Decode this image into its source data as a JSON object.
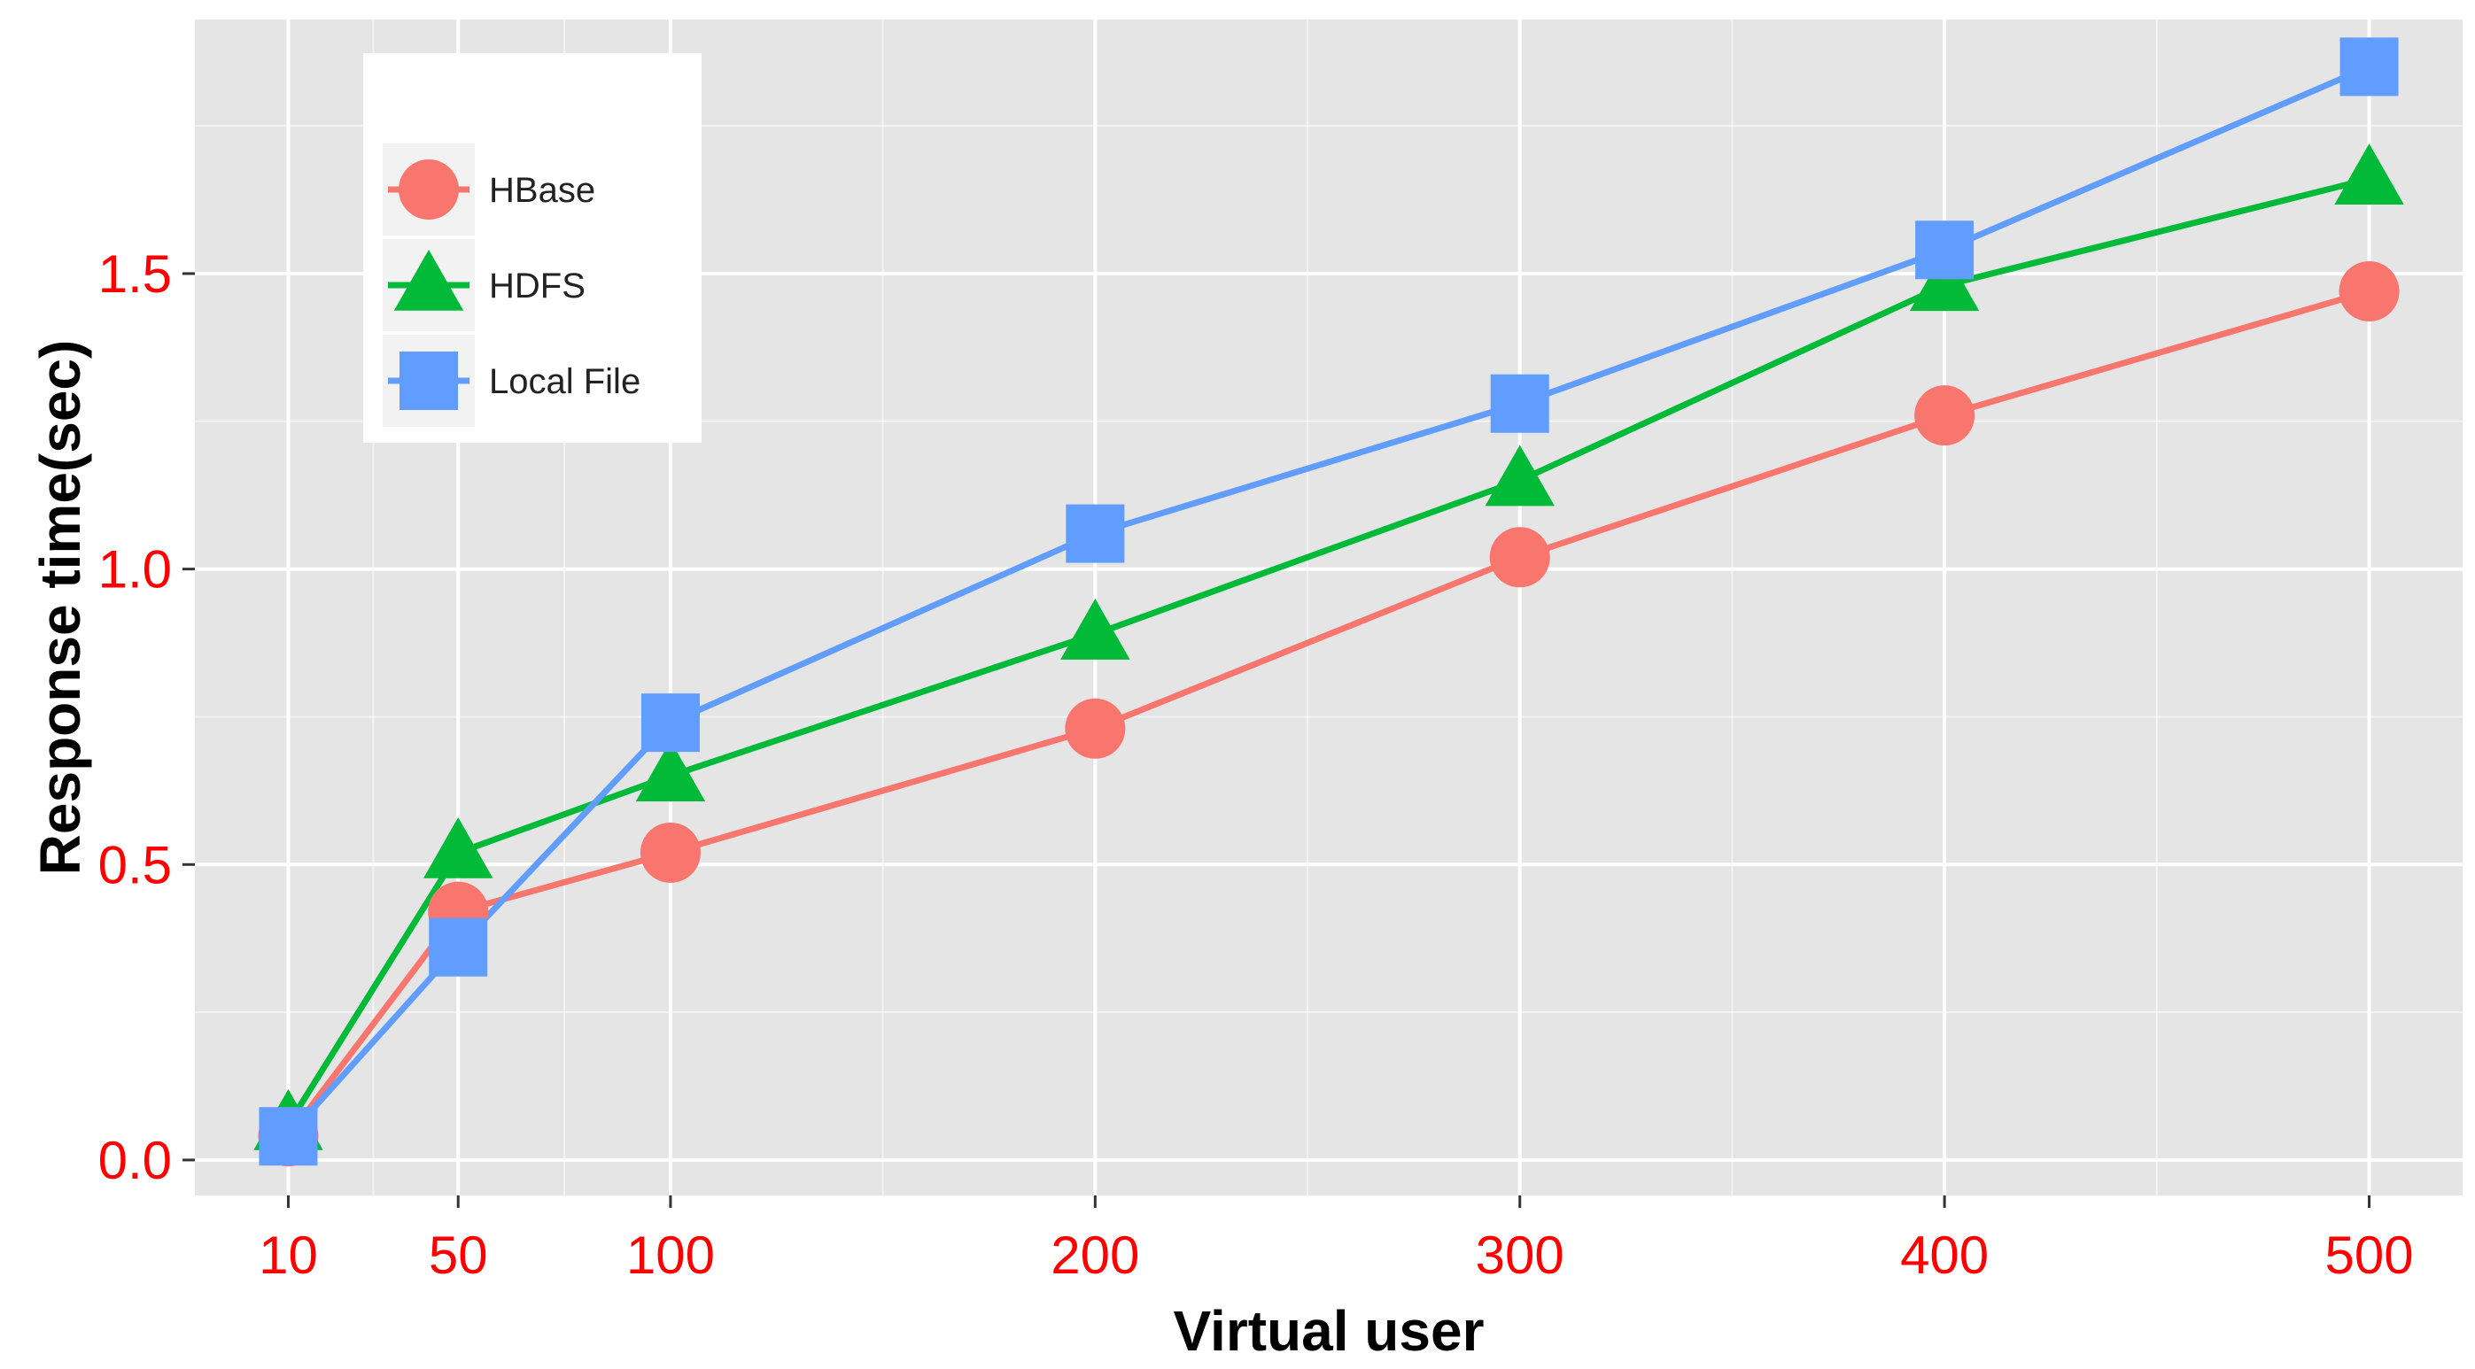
{
  "chart_data": {
    "type": "line",
    "xlabel": "Virtual user",
    "ylabel": "Response time(sec)",
    "x": [
      10,
      50,
      100,
      200,
      300,
      400,
      500
    ],
    "x_ticks": [
      10,
      50,
      100,
      200,
      300,
      400,
      500
    ],
    "x_tick_labels": [
      "10",
      "50",
      "100",
      "200",
      "300",
      "400",
      "500"
    ],
    "y_ticks": [
      0,
      0.5,
      1,
      1.5
    ],
    "y_tick_labels": [
      "0.0",
      "0.5",
      "1.0",
      "1.5"
    ],
    "xlim": [
      -12,
      522
    ],
    "ylim": [
      -0.06,
      1.93
    ],
    "grid": true,
    "legend_position": "top-left",
    "tick_label_color": "#ff0000",
    "background_color": "#e5e5e5",
    "grid_color": "#ffffff",
    "series": [
      {
        "name": "HBase",
        "color": "#f8766d",
        "marker": "circle",
        "values": [
          0.04,
          0.42,
          0.52,
          0.73,
          1.02,
          1.26,
          1.47
        ]
      },
      {
        "name": "HDFS",
        "color": "#00ba38",
        "marker": "triangle",
        "values": [
          0.06,
          0.52,
          0.65,
          0.89,
          1.15,
          1.48,
          1.66
        ]
      },
      {
        "name": "Local File",
        "color": "#619cff",
        "marker": "square",
        "values": [
          0.04,
          0.36,
          0.74,
          1.06,
          1.28,
          1.54,
          1.85
        ]
      }
    ]
  }
}
